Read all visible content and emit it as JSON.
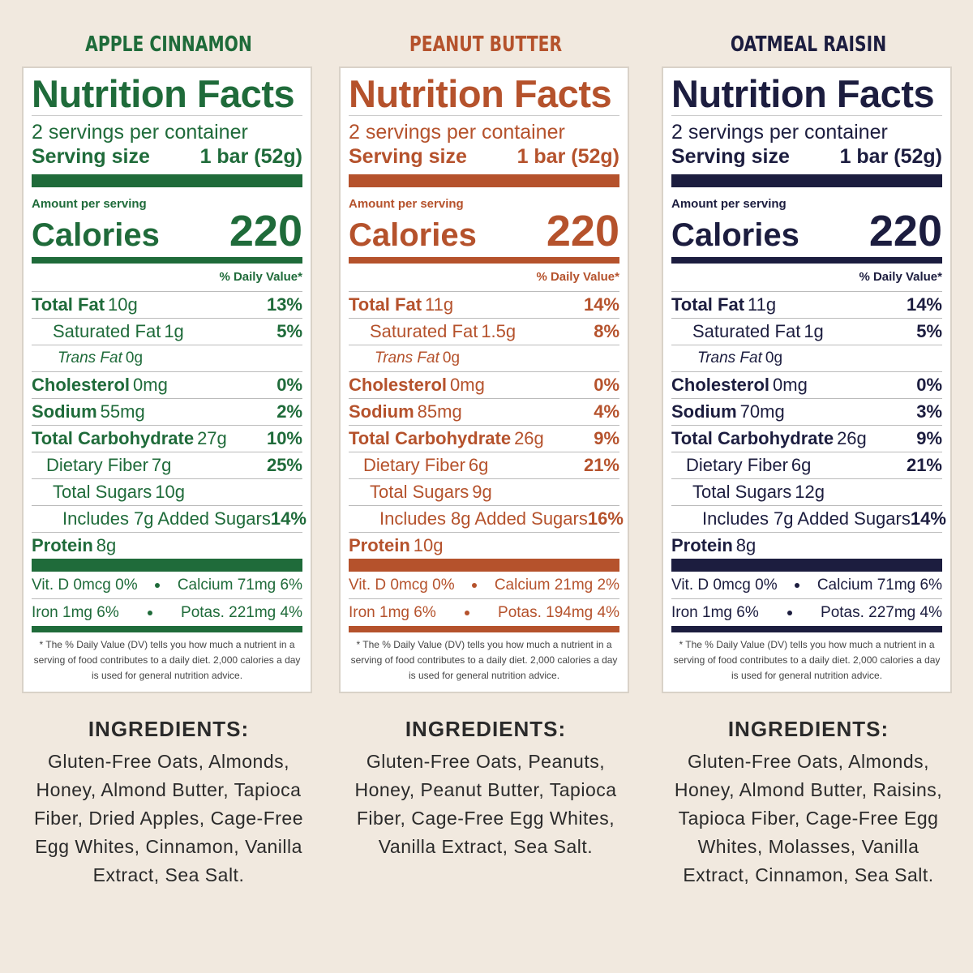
{
  "panels": [
    {
      "flavor": "APPLE CINNAMON",
      "color": "#1f6b3a",
      "label": {
        "title": "Nutrition Facts",
        "servings": "2 servings per container",
        "serving_size_label": "Serving size",
        "serving_size": "1 bar (52g)",
        "amount_label": "Amount per serving",
        "calories_label": "Calories",
        "calories": 220,
        "dv_header": "% Daily Value*",
        "rows": [
          {
            "name": "Total Fat",
            "amount": "10g",
            "dv": "13%"
          },
          {
            "name": "Saturated Fat",
            "amount": "1g",
            "dv": "5%"
          },
          {
            "name": "Trans Fat",
            "amount": "0g"
          },
          {
            "name": "Cholesterol",
            "amount": "0mg",
            "dv": "0%"
          },
          {
            "name": "Sodium",
            "amount": "55mg",
            "dv": "2%"
          },
          {
            "name": "Total Carbohydrate",
            "amount": "27g",
            "dv": "10%"
          },
          {
            "name": "Dietary Fiber",
            "amount": "7g",
            "dv": "25%"
          },
          {
            "name": "Total Sugars",
            "amount": "10g"
          },
          {
            "name": "Includes 7g Added Sugars",
            "dv": "14%"
          },
          {
            "name": "Protein",
            "amount": "8g"
          }
        ],
        "micros": [
          [
            "Vit. D 0mcg 0%",
            "Calcium 71mg 6%"
          ],
          [
            "Iron 1mg 6%",
            "Potas. 221mg 4%"
          ]
        ],
        "footnote": "* The % Daily Value (DV) tells you how much a nutrient in a serving of food contributes to a daily diet. 2,000 calories a day is used for general nutrition advice."
      },
      "ingredients_heading": "INGREDIENTS:",
      "ingredients": "Gluten-Free Oats, Almonds, Honey, Almond Butter, Tapioca Fiber, Dried Apples, Cage-Free Egg Whites, Cinnamon, Vanilla Extract, Sea Salt."
    },
    {
      "flavor": "PEANUT BUTTER",
      "color": "#b5522c",
      "label": {
        "title": "Nutrition Facts",
        "servings": "2 servings per container",
        "serving_size_label": "Serving size",
        "serving_size": "1 bar (52g)",
        "amount_label": "Amount per serving",
        "calories_label": "Calories",
        "calories": 220,
        "dv_header": "% Daily Value*",
        "rows": [
          {
            "name": "Total Fat",
            "amount": "11g",
            "dv": "14%"
          },
          {
            "name": "Saturated Fat",
            "amount": "1.5g",
            "dv": "8%"
          },
          {
            "name": "Trans Fat",
            "amount": "0g"
          },
          {
            "name": "Cholesterol",
            "amount": "0mg",
            "dv": "0%"
          },
          {
            "name": "Sodium",
            "amount": "85mg",
            "dv": "4%"
          },
          {
            "name": "Total Carbohydrate",
            "amount": "26g",
            "dv": "9%"
          },
          {
            "name": "Dietary Fiber",
            "amount": "6g",
            "dv": "21%"
          },
          {
            "name": "Total Sugars",
            "amount": "9g"
          },
          {
            "name": "Includes 8g Added Sugars",
            "dv": "16%"
          },
          {
            "name": "Protein",
            "amount": "10g"
          }
        ],
        "micros": [
          [
            "Vit. D 0mcg 0%",
            "Calcium 21mg 2%"
          ],
          [
            "Iron 1mg 6%",
            "Potas. 194mg 4%"
          ]
        ],
        "footnote": "* The % Daily Value (DV) tells you how much a nutrient in a serving of food contributes to a daily diet. 2,000 calories a day is used for general nutrition advice."
      },
      "ingredients_heading": "INGREDIENTS:",
      "ingredients": "Gluten-Free Oats, Peanuts, Honey, Peanut Butter, Tapioca Fiber, Cage-Free Egg Whites, Vanilla Extract, Sea Salt."
    },
    {
      "flavor": "OATMEAL RAISIN",
      "color": "#1c1d3f",
      "label": {
        "title": "Nutrition Facts",
        "servings": "2 servings per container",
        "serving_size_label": "Serving size",
        "serving_size": "1 bar (52g)",
        "amount_label": "Amount per serving",
        "calories_label": "Calories",
        "calories": 220,
        "dv_header": "% Daily Value*",
        "rows": [
          {
            "name": "Total Fat",
            "amount": "11g",
            "dv": "14%"
          },
          {
            "name": "Saturated Fat",
            "amount": "1g",
            "dv": "5%"
          },
          {
            "name": "Trans Fat",
            "amount": "0g"
          },
          {
            "name": "Cholesterol",
            "amount": "0mg",
            "dv": "0%"
          },
          {
            "name": "Sodium",
            "amount": "70mg",
            "dv": "3%"
          },
          {
            "name": "Total Carbohydrate",
            "amount": "26g",
            "dv": "9%"
          },
          {
            "name": "Dietary Fiber",
            "amount": "6g",
            "dv": "21%"
          },
          {
            "name": "Total Sugars",
            "amount": "12g"
          },
          {
            "name": "Includes 7g Added Sugars",
            "dv": "14%"
          },
          {
            "name": "Protein",
            "amount": "8g"
          }
        ],
        "micros": [
          [
            "Vit. D 0mcg 0%",
            "Calcium 71mg 6%"
          ],
          [
            "Iron 1mg 6%",
            "Potas. 227mg 4%"
          ]
        ],
        "footnote": "* The % Daily Value (DV) tells you how much a nutrient in a serving of food contributes to a daily diet. 2,000 calories a day is used for general nutrition advice."
      },
      "ingredients_heading": "INGREDIENTS:",
      "ingredients": "Gluten-Free Oats, Almonds, Honey, Almond Butter, Raisins, Tapioca Fiber, Cage-Free Egg Whites, Molasses, Vanilla Extract, Cinnamon, Sea Salt."
    }
  ]
}
